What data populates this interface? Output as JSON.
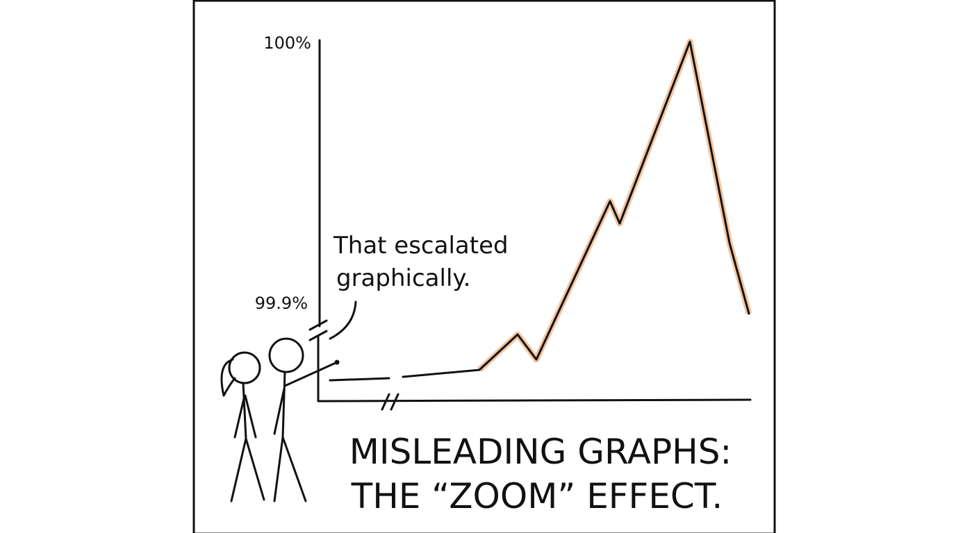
{
  "axis_labels": {
    "top": "100%",
    "bottom": "99.9%"
  },
  "speech": {
    "lines": [
      "That escalated",
      "graphically."
    ]
  },
  "caption": {
    "lines": [
      "MISLEADING GRAPHS:",
      "THE “ZOOM” EFFECT."
    ]
  }
}
